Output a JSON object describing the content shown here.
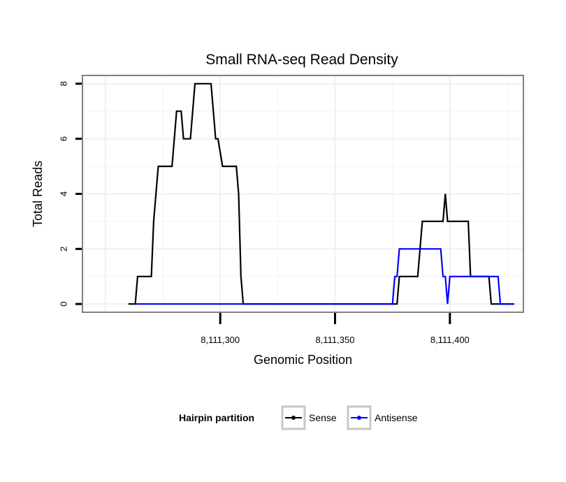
{
  "chart_data": {
    "type": "line",
    "title": "Small RNA-seq Read Density",
    "xlabel": "Genomic Position",
    "ylabel": "Total Reads",
    "xlim": [
      8111240,
      8111432
    ],
    "ylim": [
      -0.3,
      8.3
    ],
    "x_ticks": [
      8111300,
      8111350,
      8111400
    ],
    "x_tick_labels": [
      "8,111,300",
      "8,111,350",
      "8,111,400"
    ],
    "y_ticks": [
      0,
      2,
      4,
      6,
      8
    ],
    "y_tick_labels": [
      "0",
      "2",
      "4",
      "6",
      "8"
    ],
    "grid": true,
    "legend": {
      "title": "Hairpin partition",
      "placement": "bottom",
      "entries": [
        "Sense",
        "Antisense"
      ]
    },
    "series": [
      {
        "name": "Sense",
        "color": "#000000",
        "points": [
          [
            8111260,
            0
          ],
          [
            8111263,
            0
          ],
          [
            8111264,
            1
          ],
          [
            8111270,
            1
          ],
          [
            8111271,
            3
          ],
          [
            8111273,
            5
          ],
          [
            8111279,
            5
          ],
          [
            8111281,
            7
          ],
          [
            8111283,
            7
          ],
          [
            8111284,
            6
          ],
          [
            8111287,
            6
          ],
          [
            8111289,
            8
          ],
          [
            8111296,
            8
          ],
          [
            8111298,
            6
          ],
          [
            8111299,
            6
          ],
          [
            8111301,
            5
          ],
          [
            8111307,
            5
          ],
          [
            8111308,
            4
          ],
          [
            8111309,
            1
          ],
          [
            8111310,
            0
          ],
          [
            8111377,
            0
          ],
          [
            8111378,
            1
          ],
          [
            8111386,
            1
          ],
          [
            8111388,
            3
          ],
          [
            8111397,
            3
          ],
          [
            8111398,
            4
          ],
          [
            8111399,
            3
          ],
          [
            8111408,
            3
          ],
          [
            8111409,
            1
          ],
          [
            8111417,
            1
          ],
          [
            8111418,
            0
          ],
          [
            8111428,
            0
          ]
        ]
      },
      {
        "name": "Antisense",
        "color": "#0000ff",
        "points": [
          [
            8111263,
            0
          ],
          [
            8111310,
            0
          ],
          [
            8111375,
            0
          ],
          [
            8111376,
            1
          ],
          [
            8111377,
            1
          ],
          [
            8111378,
            2
          ],
          [
            8111396,
            2
          ],
          [
            8111397,
            1
          ],
          [
            8111398,
            1
          ],
          [
            8111399,
            0
          ],
          [
            8111400,
            1
          ],
          [
            8111421,
            1
          ],
          [
            8111422,
            0
          ],
          [
            8111428,
            0
          ]
        ]
      }
    ]
  }
}
